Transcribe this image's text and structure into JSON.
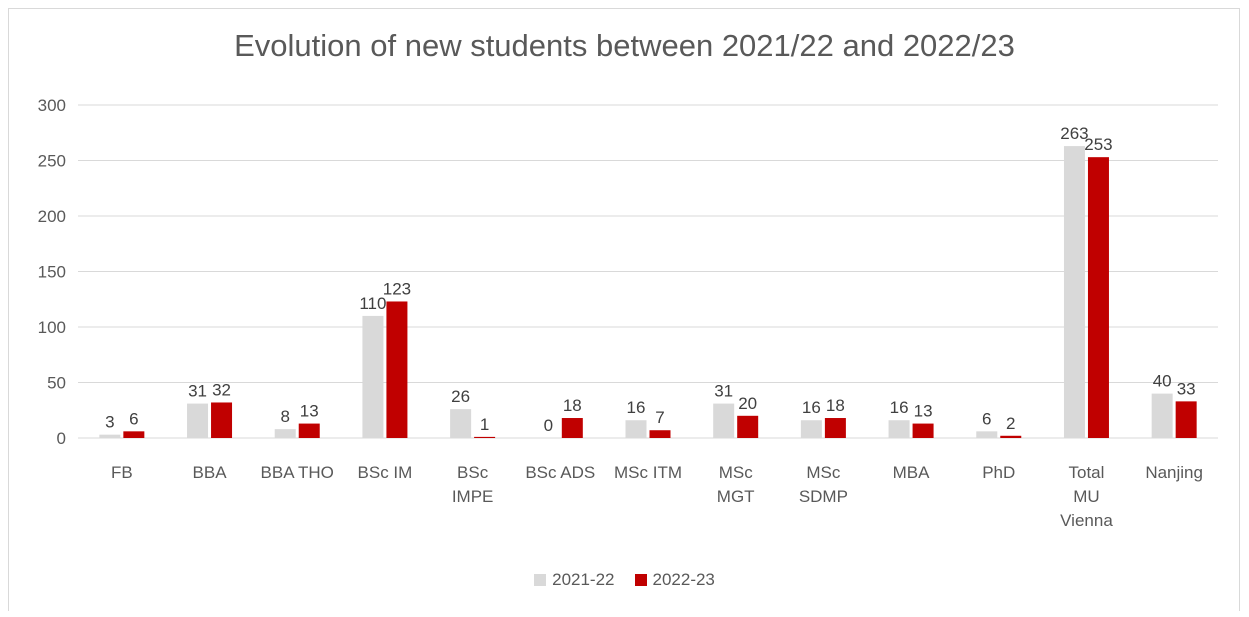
{
  "chart_data": {
    "type": "bar",
    "title": "Evolution of new students between 2021/22 and 2022/23",
    "xlabel": "",
    "ylabel": "",
    "ylim": [
      0,
      300
    ],
    "yticks": [
      0,
      50,
      100,
      150,
      200,
      250,
      300
    ],
    "grid": true,
    "legend_position": "bottom",
    "categories": [
      [
        "FB"
      ],
      [
        "BBA"
      ],
      [
        "BBA THO"
      ],
      [
        "BSc IM"
      ],
      [
        "BSc",
        "IMPE"
      ],
      [
        "BSc ADS"
      ],
      [
        "MSc ITM"
      ],
      [
        "MSc",
        "MGT"
      ],
      [
        "MSc",
        "SDMP"
      ],
      [
        "MBA"
      ],
      [
        "PhD"
      ],
      [
        "Total",
        "MU",
        "Vienna"
      ],
      [
        "Nanjing"
      ]
    ],
    "series": [
      {
        "name": "2021-22",
        "color": "#d9d9d9",
        "values": [
          3,
          31,
          8,
          110,
          26,
          0,
          16,
          31,
          16,
          16,
          6,
          263,
          40
        ]
      },
      {
        "name": "2022-23",
        "color": "#c00000",
        "values": [
          6,
          32,
          13,
          123,
          1,
          18,
          7,
          20,
          18,
          13,
          2,
          253,
          33
        ]
      }
    ]
  }
}
